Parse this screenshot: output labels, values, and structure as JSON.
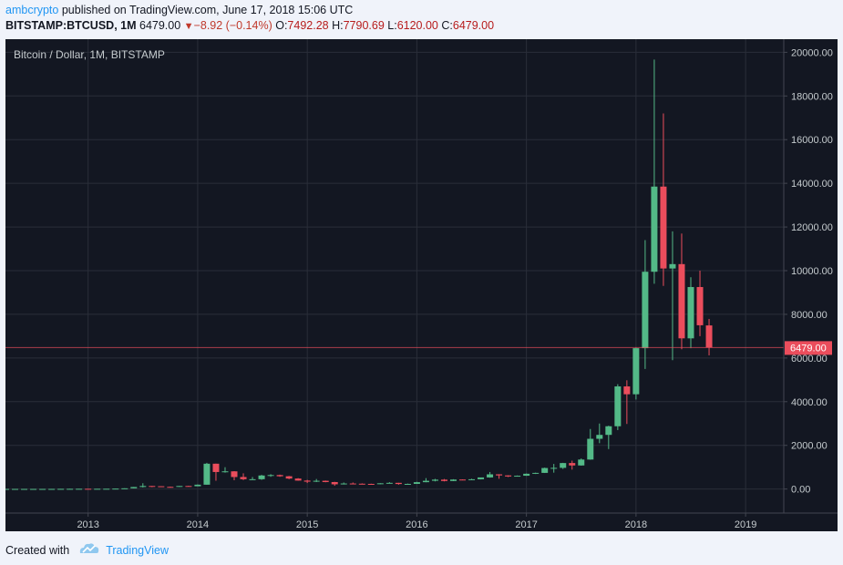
{
  "header": {
    "author": "ambcrypto",
    "published_text": "published on TradingView.com, June 17, 2018 15:06 UTC",
    "symbol": "BITSTAMP:BTCUSD, 1M",
    "last": "6479.00",
    "change": "−8.92 (−0.14%)",
    "open_label": "O:",
    "open": "7492.28",
    "high_label": "H:",
    "high": "7790.69",
    "low_label": "L:",
    "low": "6120.00",
    "close_label": "C:",
    "close": "6479.00"
  },
  "footer": {
    "created_with": "Created with",
    "brand": "TradingView"
  },
  "colors": {
    "background": "#131722",
    "up": "#53b987",
    "down": "#eb4d5c",
    "grid": "#2a2e39",
    "text": "#c5cbce",
    "price_line": "#eb4d5c"
  },
  "chart_data": {
    "type": "candlestick",
    "title": "Bitcoin / Dollar, 1M, BITSTAMP",
    "ylim": [
      -1100,
      20600
    ],
    "y_ticks": [
      "20000.00",
      "18000.00",
      "16000.00",
      "14000.00",
      "12000.00",
      "10000.00",
      "8000.00",
      "6000.00",
      "4000.00",
      "2000.00",
      "0.00"
    ],
    "x_ticks": [
      "2013",
      "2014",
      "2015",
      "2016",
      "2017",
      "2018",
      "2019"
    ],
    "x_tick_months": [
      9,
      21,
      33,
      45,
      57,
      69,
      81
    ],
    "last_price": 6479.0,
    "last_price_label": "6479.00",
    "grid": true,
    "candles": [
      {
        "m": 0,
        "o": 5,
        "h": 6,
        "l": 4,
        "c": 5
      },
      {
        "m": 1,
        "o": 5,
        "h": 6,
        "l": 4,
        "c": 5
      },
      {
        "m": 2,
        "o": 5,
        "h": 6,
        "l": 4,
        "c": 5
      },
      {
        "m": 3,
        "o": 5,
        "h": 6,
        "l": 4,
        "c": 5
      },
      {
        "m": 4,
        "o": 5,
        "h": 6,
        "l": 4,
        "c": 5
      },
      {
        "m": 5,
        "o": 5,
        "h": 7,
        "l": 4,
        "c": 6
      },
      {
        "m": 6,
        "o": 6,
        "h": 9,
        "l": 6,
        "c": 9
      },
      {
        "m": 7,
        "o": 9,
        "h": 15,
        "l": 8,
        "c": 10
      },
      {
        "m": 8,
        "o": 10,
        "h": 13,
        "l": 10,
        "c": 12
      },
      {
        "m": 9,
        "o": 12,
        "h": 13,
        "l": 10,
        "c": 11
      },
      {
        "m": 10,
        "o": 11,
        "h": 13,
        "l": 10,
        "c": 12
      },
      {
        "m": 11,
        "o": 12,
        "h": 14,
        "l": 12,
        "c": 13
      },
      {
        "m": 12,
        "o": 13,
        "h": 21,
        "l": 13,
        "c": 20
      },
      {
        "m": 13,
        "o": 20,
        "h": 35,
        "l": 20,
        "c": 33
      },
      {
        "m": 14,
        "o": 33,
        "h": 95,
        "l": 33,
        "c": 93
      },
      {
        "m": 15,
        "o": 93,
        "h": 266,
        "l": 70,
        "c": 139
      },
      {
        "m": 16,
        "o": 139,
        "h": 140,
        "l": 84,
        "c": 128
      },
      {
        "m": 17,
        "o": 128,
        "h": 130,
        "l": 100,
        "c": 100
      },
      {
        "m": 18,
        "o": 100,
        "h": 112,
        "l": 65,
        "c": 97
      },
      {
        "m": 19,
        "o": 97,
        "h": 140,
        "l": 95,
        "c": 139
      },
      {
        "m": 20,
        "o": 139,
        "h": 150,
        "l": 118,
        "c": 127
      },
      {
        "m": 21,
        "o": 127,
        "h": 210,
        "l": 125,
        "c": 199
      },
      {
        "m": 22,
        "o": 199,
        "h": 1200,
        "l": 199,
        "c": 1160
      },
      {
        "m": 23,
        "o": 1160,
        "h": 1163,
        "l": 380,
        "c": 780
      },
      {
        "m": 24,
        "o": 780,
        "h": 1000,
        "l": 750,
        "c": 810
      },
      {
        "m": 25,
        "o": 810,
        "h": 820,
        "l": 400,
        "c": 550
      },
      {
        "m": 26,
        "o": 550,
        "h": 720,
        "l": 410,
        "c": 450
      },
      {
        "m": 27,
        "o": 450,
        "h": 550,
        "l": 430,
        "c": 450
      },
      {
        "m": 28,
        "o": 450,
        "h": 650,
        "l": 420,
        "c": 620
      },
      {
        "m": 29,
        "o": 620,
        "h": 680,
        "l": 560,
        "c": 640
      },
      {
        "m": 30,
        "o": 640,
        "h": 660,
        "l": 560,
        "c": 585
      },
      {
        "m": 31,
        "o": 585,
        "h": 600,
        "l": 450,
        "c": 480
      },
      {
        "m": 32,
        "o": 480,
        "h": 500,
        "l": 380,
        "c": 387
      },
      {
        "m": 33,
        "o": 387,
        "h": 420,
        "l": 275,
        "c": 338
      },
      {
        "m": 34,
        "o": 338,
        "h": 460,
        "l": 320,
        "c": 378
      },
      {
        "m": 35,
        "o": 378,
        "h": 390,
        "l": 310,
        "c": 320
      },
      {
        "m": 36,
        "o": 320,
        "h": 330,
        "l": 150,
        "c": 217
      },
      {
        "m": 37,
        "o": 217,
        "h": 300,
        "l": 210,
        "c": 254
      },
      {
        "m": 38,
        "o": 254,
        "h": 300,
        "l": 240,
        "c": 244
      },
      {
        "m": 39,
        "o": 244,
        "h": 260,
        "l": 215,
        "c": 236
      },
      {
        "m": 40,
        "o": 236,
        "h": 245,
        "l": 225,
        "c": 230
      },
      {
        "m": 41,
        "o": 230,
        "h": 268,
        "l": 222,
        "c": 263
      },
      {
        "m": 42,
        "o": 263,
        "h": 315,
        "l": 255,
        "c": 284
      },
      {
        "m": 43,
        "o": 284,
        "h": 285,
        "l": 198,
        "c": 230
      },
      {
        "m": 44,
        "o": 230,
        "h": 250,
        "l": 225,
        "c": 236
      },
      {
        "m": 45,
        "o": 236,
        "h": 330,
        "l": 235,
        "c": 314
      },
      {
        "m": 46,
        "o": 314,
        "h": 500,
        "l": 310,
        "c": 378
      },
      {
        "m": 47,
        "o": 378,
        "h": 465,
        "l": 350,
        "c": 430
      },
      {
        "m": 48,
        "o": 430,
        "h": 460,
        "l": 350,
        "c": 368
      },
      {
        "m": 49,
        "o": 368,
        "h": 450,
        "l": 365,
        "c": 435
      },
      {
        "m": 50,
        "o": 435,
        "h": 440,
        "l": 410,
        "c": 416
      },
      {
        "m": 51,
        "o": 416,
        "h": 470,
        "l": 415,
        "c": 448
      },
      {
        "m": 52,
        "o": 448,
        "h": 460,
        "l": 440,
        "c": 531
      },
      {
        "m": 53,
        "o": 531,
        "h": 780,
        "l": 520,
        "c": 673
      },
      {
        "m": 54,
        "o": 673,
        "h": 680,
        "l": 470,
        "c": 624
      },
      {
        "m": 55,
        "o": 624,
        "h": 630,
        "l": 550,
        "c": 575
      },
      {
        "m": 56,
        "o": 575,
        "h": 620,
        "l": 570,
        "c": 609
      },
      {
        "m": 57,
        "o": 609,
        "h": 710,
        "l": 605,
        "c": 700
      },
      {
        "m": 58,
        "o": 700,
        "h": 750,
        "l": 690,
        "c": 740
      },
      {
        "m": 59,
        "o": 740,
        "h": 980,
        "l": 735,
        "c": 963
      },
      {
        "m": 60,
        "o": 963,
        "h": 1150,
        "l": 750,
        "c": 970
      },
      {
        "m": 61,
        "o": 970,
        "h": 1200,
        "l": 920,
        "c": 1190
      },
      {
        "m": 62,
        "o": 1190,
        "h": 1300,
        "l": 890,
        "c": 1080
      },
      {
        "m": 63,
        "o": 1080,
        "h": 1400,
        "l": 1070,
        "c": 1350
      },
      {
        "m": 64,
        "o": 1350,
        "h": 2750,
        "l": 1340,
        "c": 2300
      },
      {
        "m": 65,
        "o": 2300,
        "h": 3000,
        "l": 2100,
        "c": 2480
      },
      {
        "m": 66,
        "o": 2480,
        "h": 2900,
        "l": 1830,
        "c": 2875
      },
      {
        "m": 67,
        "o": 2875,
        "h": 4800,
        "l": 2700,
        "c": 4700
      },
      {
        "m": 68,
        "o": 4700,
        "h": 4980,
        "l": 2980,
        "c": 4340
      },
      {
        "m": 69,
        "o": 4340,
        "h": 6480,
        "l": 4100,
        "c": 6450
      },
      {
        "m": 70,
        "o": 6450,
        "h": 11400,
        "l": 5500,
        "c": 9950
      },
      {
        "m": 71,
        "o": 9950,
        "h": 19666,
        "l": 9400,
        "c": 13850
      },
      {
        "m": 72,
        "o": 13850,
        "h": 17200,
        "l": 9300,
        "c": 10100
      },
      {
        "m": 73,
        "o": 10100,
        "h": 11800,
        "l": 5900,
        "c": 10300
      },
      {
        "m": 74,
        "o": 10300,
        "h": 11700,
        "l": 6400,
        "c": 6900
      },
      {
        "m": 75,
        "o": 6900,
        "h": 9700,
        "l": 6450,
        "c": 9250
      },
      {
        "m": 76,
        "o": 9250,
        "h": 10000,
        "l": 7000,
        "c": 7500
      },
      {
        "m": 77,
        "o": 7492,
        "h": 7790,
        "l": 6120,
        "c": 6479
      }
    ]
  }
}
